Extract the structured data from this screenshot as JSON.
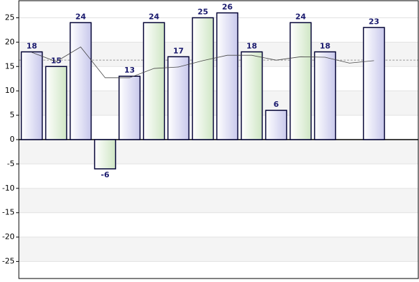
{
  "chart_data": {
    "type": "bar",
    "values": [
      18,
      15,
      24,
      -6,
      13,
      24,
      17,
      25,
      26,
      18,
      6,
      24,
      18,
      null,
      23
    ],
    "colors": [
      "#c8c8ec",
      "#cfe6c4"
    ],
    "bar_border": "#000033",
    "label_color": "#1a1a6e",
    "trend_line": {
      "values": [
        17.9,
        16,
        19,
        12.7,
        12.7,
        14.6,
        14.9,
        16.2,
        17.3,
        17.3,
        16.3,
        17,
        16.9,
        15.7,
        16.2
      ],
      "color": "#444444"
    },
    "average_line": 16.3,
    "ylim": [
      -28.5,
      28.5
    ],
    "yticks": [
      -25,
      -20,
      -15,
      -10,
      -5,
      0,
      5,
      10,
      15,
      20,
      25
    ],
    "grid": true
  }
}
